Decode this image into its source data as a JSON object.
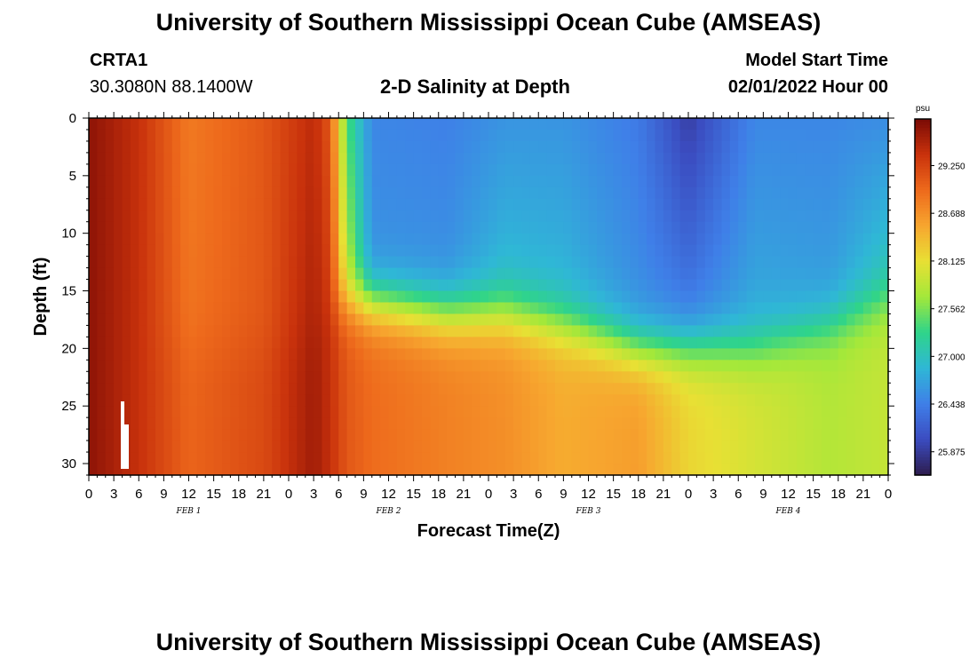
{
  "header": {
    "title": "University of Southern Mississippi Ocean Cube (AMSEAS)",
    "footer_title": "University of Southern Mississippi Ocean Cube (AMSEAS)",
    "station_id": "CRTA1",
    "station_coords": "30.3080N  88.1400W",
    "chart_title": "2-D Salinity at Depth",
    "model_start_label": "Model Start Time",
    "model_start_value": "02/01/2022 Hour 00"
  },
  "chart_data": {
    "type": "heatmap",
    "title": "2-D Salinity at Depth",
    "xlabel": "Forecast Time(Z)",
    "ylabel": "Depth (ft)",
    "xlim": [
      0,
      96
    ],
    "ylim": [
      31,
      0
    ],
    "x_tick_labels": [
      "0",
      "3",
      "6",
      "9",
      "12",
      "15",
      "18",
      "21",
      "0",
      "3",
      "6",
      "9",
      "12",
      "15",
      "18",
      "21",
      "0",
      "3",
      "6",
      "9",
      "12",
      "15",
      "18",
      "21",
      "0",
      "3",
      "6",
      "9",
      "12",
      "15",
      "18",
      "21",
      "0"
    ],
    "y_ticks": [
      0,
      5,
      10,
      15,
      20,
      25,
      30
    ],
    "day_labels": [
      "FEB 1",
      "FEB 2",
      "FEB 3",
      "FEB 4"
    ],
    "colorbar": {
      "unit": "psu",
      "range": [
        25.6,
        29.8
      ],
      "tick_labels": [
        "29.250",
        "28.688",
        "28.125",
        "27.562",
        "27.000",
        "26.438",
        "25.875"
      ],
      "colors": [
        "#2d1c4e",
        "#3b4cc0",
        "#3f7fe8",
        "#2fb7d6",
        "#2fd48a",
        "#a3e83a",
        "#e8e034",
        "#f7a62f",
        "#ee6a1c",
        "#c9320c",
        "#7a0a05"
      ]
    },
    "salinity_profiles": [
      {
        "t": 0,
        "top": 29.7,
        "mid": 29.7,
        "bot": 29.7,
        "thermocline_ft": 20
      },
      {
        "t": 6,
        "top": 29.4,
        "mid": 29.4,
        "bot": 29.4,
        "thermocline_ft": 20
      },
      {
        "t": 12,
        "top": 28.85,
        "mid": 28.9,
        "bot": 29.0,
        "thermocline_ft": 20
      },
      {
        "t": 21,
        "top": 29.1,
        "mid": 29.1,
        "bot": 29.2,
        "thermocline_ft": 20
      },
      {
        "t": 27,
        "top": 29.45,
        "mid": 29.55,
        "bot": 29.6,
        "thermocline_ft": 20
      },
      {
        "t": 29,
        "top": 29.1,
        "mid": 29.3,
        "bot": 29.4,
        "thermocline_ft": 17
      },
      {
        "t": 31,
        "top": 27.4,
        "mid": 27.9,
        "bot": 29.1,
        "thermocline_ft": 16
      },
      {
        "t": 34,
        "top": 26.5,
        "mid": 26.6,
        "bot": 28.95,
        "thermocline_ft": 16
      },
      {
        "t": 43,
        "top": 26.45,
        "mid": 26.6,
        "bot": 28.8,
        "thermocline_ft": 17
      },
      {
        "t": 50,
        "top": 26.6,
        "mid": 26.95,
        "bot": 28.7,
        "thermocline_ft": 17
      },
      {
        "t": 57,
        "top": 26.6,
        "mid": 26.9,
        "bot": 28.5,
        "thermocline_ft": 18
      },
      {
        "t": 66,
        "top": 26.4,
        "mid": 26.6,
        "bot": 28.6,
        "thermocline_ft": 20
      },
      {
        "t": 72,
        "top": 25.9,
        "mid": 26.5,
        "bot": 28.2,
        "thermocline_ft": 20
      },
      {
        "t": 80,
        "top": 26.5,
        "mid": 26.8,
        "bot": 28.0,
        "thermocline_ft": 20
      },
      {
        "t": 89,
        "top": 26.5,
        "mid": 26.7,
        "bot": 27.8,
        "thermocline_ft": 18
      },
      {
        "t": 96,
        "top": 26.55,
        "mid": 27.1,
        "bot": 27.9,
        "thermocline_ft": 16
      }
    ]
  }
}
